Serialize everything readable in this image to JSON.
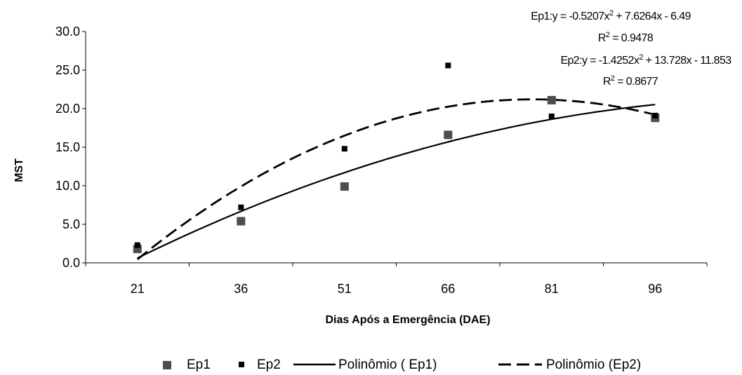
{
  "chart_data": {
    "type": "scatter",
    "xlabel": "Dias Após a Emergência (DAE)",
    "ylabel": "MST",
    "categories": [
      "21",
      "36",
      "51",
      "66",
      "81",
      "96"
    ],
    "y_ticks": [
      "0.0",
      "5.0",
      "10.0",
      "15.0",
      "20.0",
      "25.0",
      "30.0"
    ],
    "ylim": [
      0,
      30
    ],
    "grid": false,
    "legend_position": "bottom",
    "series": [
      {
        "name": "Ep1",
        "kind": "points",
        "marker": "square-large",
        "color": "#4d4d4d",
        "x": [
          1,
          2,
          3,
          4,
          5,
          6
        ],
        "y": [
          1.8,
          5.4,
          9.9,
          16.6,
          21.1,
          18.8
        ]
      },
      {
        "name": "Ep2",
        "kind": "points",
        "marker": "square-small",
        "color": "#000000",
        "x": [
          1,
          2,
          3,
          4,
          5,
          6
        ],
        "y": [
          2.3,
          7.2,
          14.8,
          25.6,
          19.0,
          19.1
        ]
      },
      {
        "name": "Polinômio ( Ep1)",
        "kind": "trendline",
        "dash": "solid",
        "color": "#000000",
        "coefficients": [
          -0.5207,
          7.6264,
          -6.49
        ],
        "x_range": [
          1,
          6
        ]
      },
      {
        "name": "Polinômio (Ep2)",
        "kind": "trendline",
        "dash": "dashed",
        "color": "#000000",
        "coefficients": [
          -1.4252,
          13.728,
          -11.853
        ],
        "x_range": [
          1,
          6
        ]
      }
    ],
    "annotations": [
      {
        "eq_prefix": "Ep1:y = -0.5207x",
        "eq_suffix": " + 7.6264x - 6.49",
        "r2": " = 0.9478"
      },
      {
        "eq_prefix": "Ep2:y = -1.4252x",
        "eq_suffix": " + 13.728x - 11.853",
        "r2": " = 0.8677"
      }
    ]
  }
}
